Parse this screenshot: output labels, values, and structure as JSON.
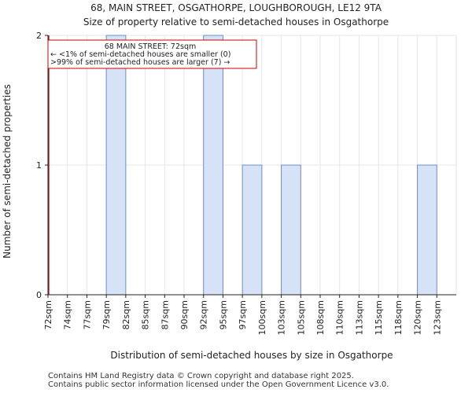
{
  "chart_data": {
    "type": "bar",
    "title": "68, MAIN STREET, OSGATHORPE, LOUGHBOROUGH, LE12 9TA",
    "subtitle": "Size of property relative to semi-detached houses in Osgathorpe",
    "xlabel": "Distribution of semi-detached houses by size in Osgathorpe",
    "ylabel": "Number of semi-detached properties",
    "categories": [
      "72sqm",
      "74sqm",
      "77sqm",
      "79sqm",
      "82sqm",
      "85sqm",
      "87sqm",
      "90sqm",
      "92sqm",
      "95sqm",
      "97sqm",
      "100sqm",
      "103sqm",
      "105sqm",
      "108sqm",
      "110sqm",
      "113sqm",
      "115sqm",
      "118sqm",
      "120sqm",
      "123sqm"
    ],
    "values": [
      0,
      0,
      0,
      2,
      0,
      0,
      0,
      0,
      2,
      0,
      1,
      0,
      1,
      0,
      0,
      0,
      0,
      0,
      0,
      1,
      0
    ],
    "ylim": [
      0,
      2
    ],
    "yticks": [
      "0",
      "1",
      "2"
    ],
    "grid": true,
    "bar_color": "#d6e2f5",
    "bar_edge_color": "#6f8fc9",
    "marker": {
      "category_index": 0,
      "color": "#cc0000"
    },
    "annotation": {
      "line1": "68 MAIN STREET: 72sqm",
      "line2": "← <1% of semi-detached houses are smaller (0)",
      "line3": ">99% of semi-detached houses are larger (7) →"
    }
  },
  "footer": {
    "line1": "Contains HM Land Registry data © Crown copyright and database right 2025.",
    "line2": "Contains public sector information licensed under the Open Government Licence v3.0."
  }
}
